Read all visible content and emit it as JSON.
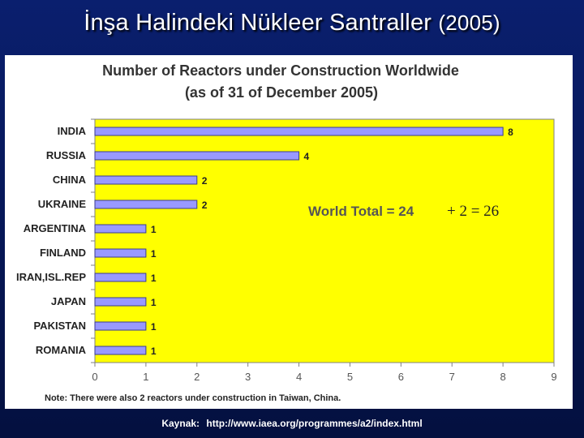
{
  "slide": {
    "title_main": "İnşa Halindeki Nükleer Santraller",
    "title_year": "(2005)",
    "source_label": "Kaynak:",
    "source_url": "http://www.iaea.org/programmes/a2/index.html"
  },
  "chart_data": {
    "type": "bar",
    "orientation": "horizontal",
    "title": "Number of Reactors under Construction Worldwide",
    "subtitle": "(as of 31 of December 2005)",
    "categories": [
      "INDIA",
      "RUSSIA",
      "CHINA",
      "UKRAINE",
      "ARGENTINA",
      "FINLAND",
      "IRAN,ISL.REP",
      "JAPAN",
      "PAKISTAN",
      "ROMANIA"
    ],
    "values": [
      8,
      4,
      2,
      2,
      1,
      1,
      1,
      1,
      1,
      1
    ],
    "xlim": [
      0,
      9
    ],
    "x_ticks": [
      "0",
      "1",
      "2",
      "3",
      "4",
      "5",
      "6",
      "7",
      "8",
      "9"
    ],
    "annotation": "World Total = 24",
    "annotation_handwritten": "+ 2 = 26",
    "note": "Note: There were also 2 reactors under construction in Taiwan, China.",
    "grid": false,
    "colors": {
      "plot_background": "#ffff00",
      "bar_fill": "#9999ff",
      "bar_stroke": "#3b3b8f",
      "title_text": "#333333",
      "annotation_text": "#555555",
      "axis": "#808080"
    }
  }
}
